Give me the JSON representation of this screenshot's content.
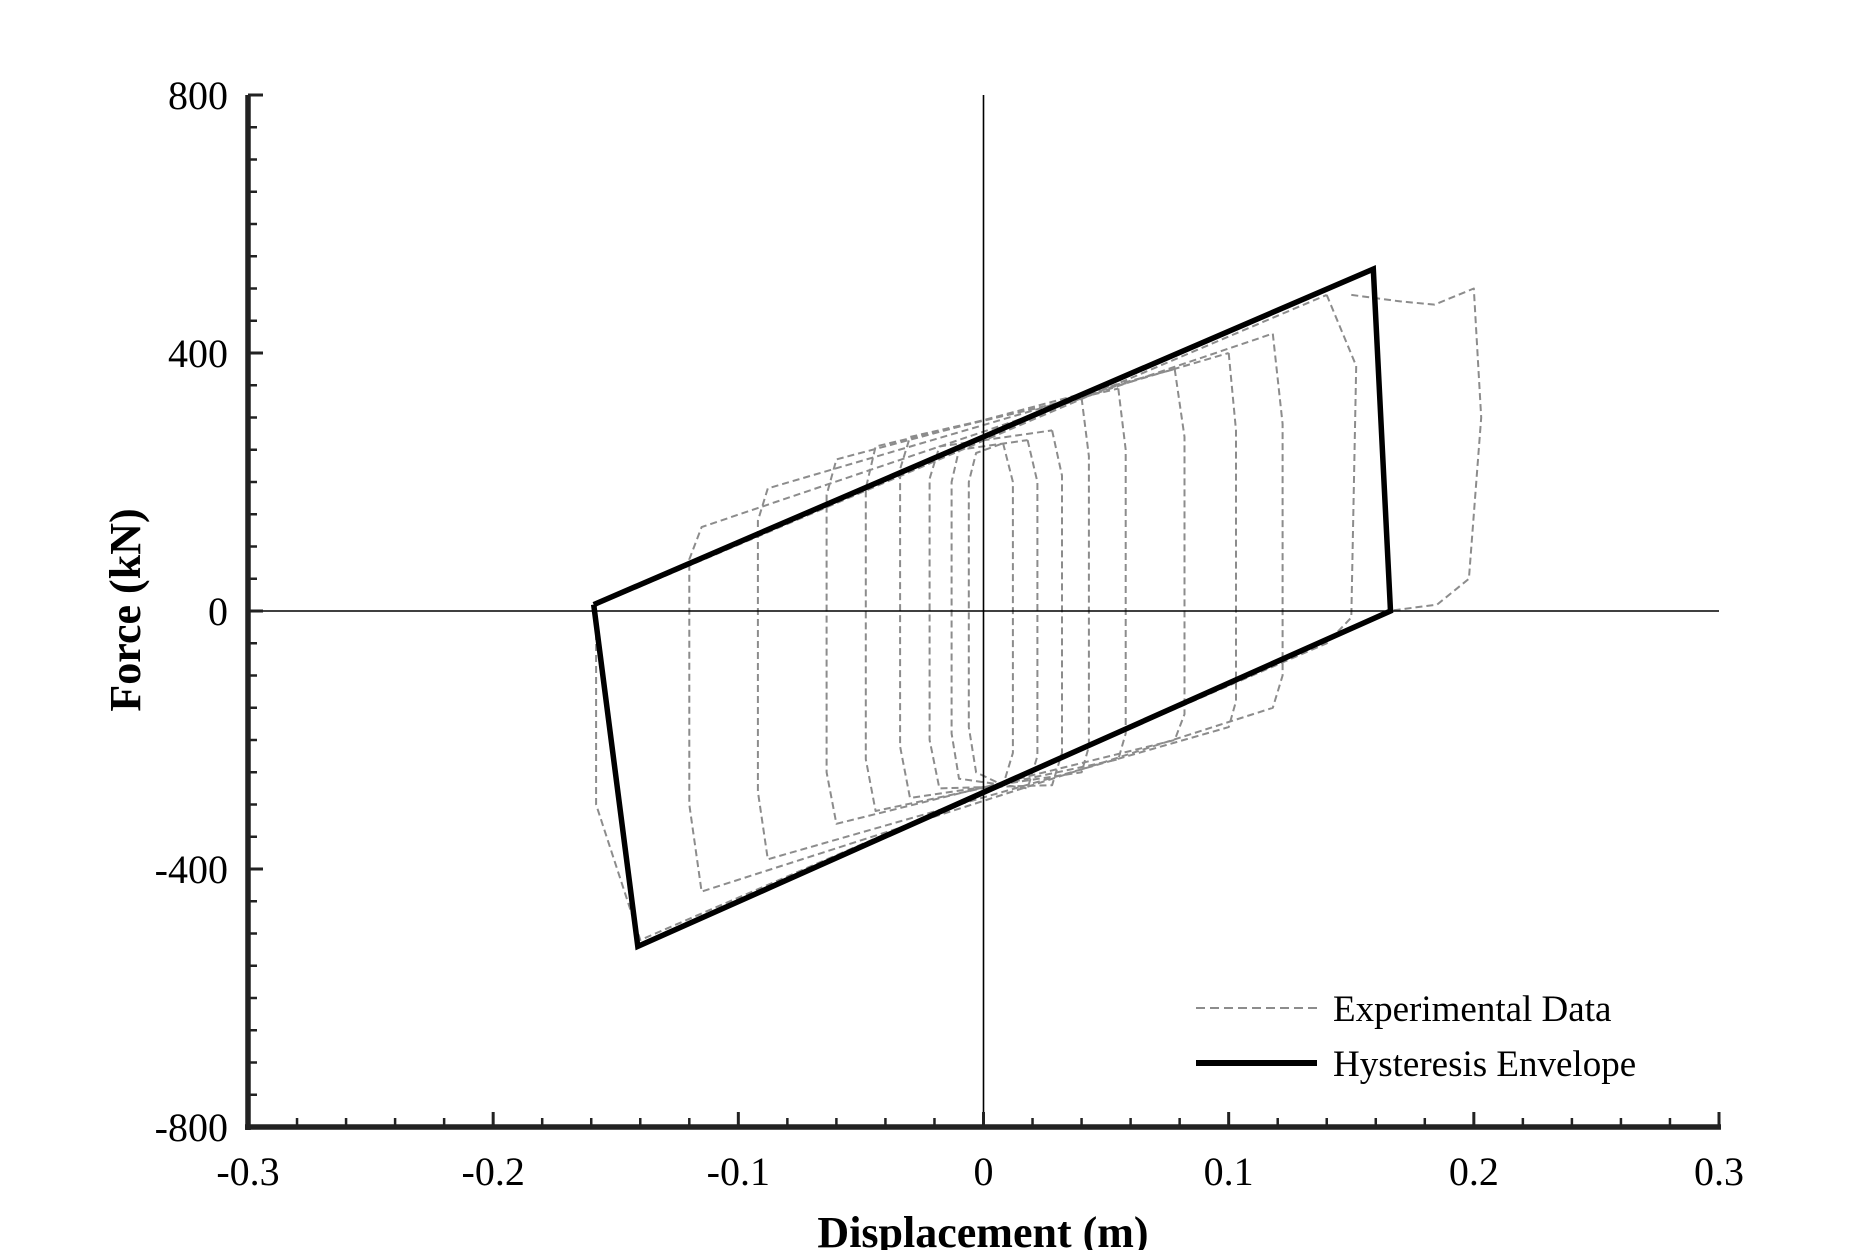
{
  "chart_data": {
    "type": "line",
    "title": "",
    "xlabel": "Displacement (m)",
    "ylabel": "Force (kN)",
    "xlim": [
      -0.3,
      0.3
    ],
    "ylim": [
      -800,
      800
    ],
    "xticks": [
      -0.3,
      -0.2,
      -0.1,
      0,
      0.1,
      0.2,
      0.3
    ],
    "xtick_labels": [
      "-0.3",
      "-0.2",
      "-0.1",
      "0",
      "0.1",
      "0.2",
      "0.3"
    ],
    "yticks": [
      -800,
      -400,
      0,
      400,
      800
    ],
    "ytick_labels": [
      "-800",
      "-400",
      "0",
      "400",
      "800"
    ],
    "grid": false,
    "legend_position": "bottom-right",
    "colors": {
      "experimental": "#8c8c8c",
      "envelope": "#000000",
      "axes": "#222222"
    },
    "series": [
      {
        "name": "Experimental Data",
        "style": "dashed",
        "loops": [
          {
            "x": [
              0.008,
              0.012,
              0.012,
              0.008,
              -0.003,
              -0.006,
              -0.006,
              -0.003,
              0.008
            ],
            "y": [
              260,
              200,
              -220,
              -270,
              -250,
              -180,
              200,
              245,
              260
            ]
          },
          {
            "x": [
              0.018,
              0.022,
              0.022,
              0.018,
              -0.01,
              -0.013,
              -0.013,
              -0.01,
              0.018
            ],
            "y": [
              265,
              200,
              -225,
              -275,
              -260,
              -190,
              200,
              250,
              265
            ]
          },
          {
            "x": [
              0.028,
              0.032,
              0.032,
              0.028,
              -0.018,
              -0.022,
              -0.022,
              -0.018,
              0.028
            ],
            "y": [
              280,
              210,
              -220,
              -270,
              -275,
              -200,
              205,
              255,
              280
            ]
          },
          {
            "x": [
              0.04,
              0.043,
              0.043,
              0.04,
              -0.03,
              -0.034,
              -0.034,
              -0.03,
              0.04
            ],
            "y": [
              330,
              240,
              -210,
              -250,
              -290,
              -210,
              220,
              270,
              330
            ]
          },
          {
            "x": [
              0.055,
              0.058,
              0.058,
              0.055,
              -0.044,
              -0.048,
              -0.048,
              -0.044,
              0.055
            ],
            "y": [
              345,
              250,
              -190,
              -230,
              -310,
              -230,
              190,
              255,
              345
            ]
          },
          {
            "x": [
              0.078,
              0.082,
              0.082,
              0.078,
              -0.06,
              -0.064,
              -0.064,
              -0.06,
              0.078
            ],
            "y": [
              375,
              270,
              -160,
              -200,
              -330,
              -250,
              180,
              235,
              375
            ]
          },
          {
            "x": [
              0.1,
              0.103,
              0.103,
              0.1,
              -0.088,
              -0.092,
              -0.092,
              -0.088,
              0.1
            ],
            "y": [
              400,
              280,
              -140,
              -180,
              -385,
              -280,
              140,
              190,
              400
            ]
          },
          {
            "x": [
              0.118,
              0.122,
              0.122,
              0.118,
              -0.115,
              -0.12,
              -0.12,
              -0.115,
              0.118
            ],
            "y": [
              430,
              290,
              -100,
              -150,
              -435,
              -300,
              80,
              130,
              430
            ]
          },
          {
            "x": [
              0.14,
              0.152,
              0.15,
              0.14,
              -0.14,
              -0.158,
              -0.158,
              -0.145,
              0.14
            ],
            "y": [
              490,
              380,
              -10,
              -50,
              -510,
              -300,
              10,
              30,
              490
            ]
          },
          {
            "x": [
              0.15,
              0.17,
              0.184,
              0.2,
              0.203,
              0.198,
              0.185,
              0.165
            ],
            "y": [
              490,
              480,
              475,
              500,
              300,
              50,
              10,
              0
            ]
          }
        ]
      },
      {
        "name": "Hysteresis Envelope",
        "style": "solid",
        "x": [
          -0.159,
          0.159,
          0.166,
          -0.141,
          -0.159
        ],
        "y": [
          10,
          530,
          0,
          -520,
          10
        ]
      }
    ]
  }
}
